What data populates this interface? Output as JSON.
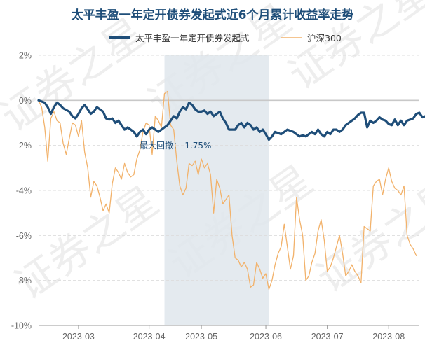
{
  "chart_data": {
    "type": "line",
    "title": "太平丰盈一年定开债券发起式近6个月累计收益率走势",
    "xlabel": "",
    "ylabel": "",
    "ylim": [
      -10,
      2
    ],
    "yticks": [
      2,
      0,
      -2,
      -4,
      -6,
      -8,
      -10
    ],
    "ytick_labels": [
      "2%",
      "0%",
      "-2%",
      "-4%",
      "-6%",
      "-8%",
      "-10%"
    ],
    "xtick_labels": [
      "2023-03",
      "2023-04",
      "2023-05",
      "2023-06",
      "2023-07",
      "2023-08"
    ],
    "x_index_range": [
      0,
      124
    ],
    "xtick_index": [
      13,
      36,
      53,
      74,
      94,
      114
    ],
    "grid": true,
    "legend_position": "top",
    "series": [
      {
        "name": "太平丰盈一年定开债券发起式",
        "color": "#1f4e79",
        "points": [
          [
            0,
            0.0
          ],
          [
            2,
            -0.1
          ],
          [
            3,
            -0.3
          ],
          [
            4,
            -0.6
          ],
          [
            5,
            -0.3
          ],
          [
            6,
            -0.1
          ],
          [
            7,
            -0.2
          ],
          [
            8,
            -0.35
          ],
          [
            10,
            -0.5
          ],
          [
            11,
            -0.7
          ],
          [
            12,
            -0.8
          ],
          [
            13,
            -0.6
          ],
          [
            14,
            -0.35
          ],
          [
            15,
            -0.2
          ],
          [
            16,
            -0.4
          ],
          [
            17,
            -0.6
          ],
          [
            18,
            -0.5
          ],
          [
            19,
            -0.3
          ],
          [
            20,
            -0.4
          ],
          [
            21,
            -0.5
          ],
          [
            22,
            -0.8
          ],
          [
            23,
            -0.85
          ],
          [
            24,
            -0.8
          ],
          [
            25,
            -1.0
          ],
          [
            26,
            -0.9
          ],
          [
            27,
            -1.1
          ],
          [
            28,
            -1.3
          ],
          [
            29,
            -1.2
          ],
          [
            30,
            -1.3
          ],
          [
            31,
            -1.4
          ],
          [
            32,
            -1.6
          ],
          [
            33,
            -1.4
          ],
          [
            34,
            -1.3
          ],
          [
            35,
            -1.5
          ],
          [
            36,
            -1.3
          ],
          [
            37,
            -1.2
          ],
          [
            38,
            -1.3
          ],
          [
            39,
            -1.4
          ],
          [
            40,
            -1.3
          ],
          [
            41,
            -1.2
          ],
          [
            42,
            -1.1
          ],
          [
            43,
            -0.9
          ],
          [
            44,
            -0.7
          ],
          [
            45,
            -0.8
          ],
          [
            46,
            -0.5
          ],
          [
            47,
            -0.3
          ],
          [
            48,
            -0.4
          ],
          [
            49,
            -0.1
          ],
          [
            50,
            -0.2
          ],
          [
            51,
            -0.4
          ],
          [
            52,
            -0.5
          ],
          [
            53,
            -0.5
          ],
          [
            54,
            -0.45
          ],
          [
            55,
            -0.6
          ],
          [
            56,
            -0.5
          ],
          [
            57,
            -0.7
          ],
          [
            58,
            -0.6
          ],
          [
            59,
            -0.5
          ],
          [
            60,
            -0.8
          ],
          [
            61,
            -1.0
          ],
          [
            62,
            -1.3
          ],
          [
            63,
            -1.3
          ],
          [
            64,
            -1.3
          ],
          [
            65,
            -1.1
          ],
          [
            66,
            -1.0
          ],
          [
            67,
            -1.2
          ],
          [
            68,
            -1.0
          ],
          [
            69,
            -1.1
          ],
          [
            70,
            -1.3
          ],
          [
            71,
            -1.2
          ],
          [
            72,
            -1.4
          ],
          [
            73,
            -1.3
          ],
          [
            74,
            -1.5
          ],
          [
            75,
            -1.75
          ],
          [
            76,
            -1.6
          ],
          [
            77,
            -1.4
          ],
          [
            78,
            -1.45
          ],
          [
            79,
            -1.5
          ],
          [
            80,
            -1.4
          ],
          [
            81,
            -1.3
          ],
          [
            82,
            -1.35
          ],
          [
            83,
            -1.4
          ],
          [
            84,
            -1.5
          ],
          [
            85,
            -1.6
          ],
          [
            86,
            -1.55
          ],
          [
            87,
            -1.6
          ],
          [
            88,
            -1.5
          ],
          [
            89,
            -1.4
          ],
          [
            90,
            -1.5
          ],
          [
            91,
            -1.3
          ],
          [
            92,
            -1.5
          ],
          [
            93,
            -1.6
          ],
          [
            94,
            -1.4
          ],
          [
            95,
            -1.5
          ],
          [
            96,
            -1.3
          ],
          [
            97,
            -1.3
          ],
          [
            98,
            -1.4
          ],
          [
            99,
            -1.3
          ],
          [
            100,
            -1.1
          ],
          [
            101,
            -1.0
          ],
          [
            102,
            -0.9
          ],
          [
            103,
            -0.8
          ],
          [
            104,
            -0.65
          ],
          [
            105,
            -0.55
          ],
          [
            106,
            -0.55
          ],
          [
            107,
            -1.2
          ],
          [
            108,
            -0.9
          ],
          [
            109,
            -1.0
          ],
          [
            110,
            -0.9
          ],
          [
            111,
            -0.75
          ],
          [
            112,
            -0.85
          ],
          [
            113,
            -0.9
          ],
          [
            114,
            -1.05
          ],
          [
            115,
            -1.1
          ],
          [
            116,
            -0.85
          ],
          [
            117,
            -1.1
          ],
          [
            118,
            -0.9
          ],
          [
            119,
            -1.1
          ],
          [
            120,
            -0.9
          ],
          [
            121,
            -0.85
          ],
          [
            122,
            -0.8
          ],
          [
            123,
            -0.6
          ],
          [
            124,
            -0.55
          ],
          [
            125,
            -0.75
          ],
          [
            126,
            -0.7
          ],
          [
            127,
            -0.45
          ],
          [
            128,
            -0.6
          ],
          [
            129,
            -0.4
          ],
          [
            130,
            -0.25
          ],
          [
            131,
            -0.45
          ],
          [
            132,
            -0.5
          ],
          [
            133,
            -0.55
          ],
          [
            134,
            -0.5
          ],
          [
            135,
            -0.8
          ],
          [
            136,
            -0.75
          ]
        ]
      },
      {
        "name": "沪深300",
        "color": "#f2b26b",
        "points": [
          [
            0,
            0.0
          ],
          [
            1,
            -0.3
          ],
          [
            2,
            -1.2
          ],
          [
            3,
            -2.7
          ],
          [
            4,
            -0.8
          ],
          [
            5,
            -0.5
          ],
          [
            6,
            -0.9
          ],
          [
            7,
            -1.0
          ],
          [
            8,
            -1.9
          ],
          [
            9,
            -2.4
          ],
          [
            10,
            -1.7
          ],
          [
            11,
            -1.0
          ],
          [
            12,
            -1.1
          ],
          [
            13,
            -1.6
          ],
          [
            14,
            -0.9
          ],
          [
            15,
            -2.3
          ],
          [
            16,
            -3.0
          ],
          [
            17,
            -4.3
          ],
          [
            18,
            -3.6
          ],
          [
            19,
            -3.8
          ],
          [
            20,
            -4.3
          ],
          [
            21,
            -4.9
          ],
          [
            22,
            -4.6
          ],
          [
            23,
            -5.0
          ],
          [
            24,
            -3.7
          ],
          [
            25,
            -3.0
          ],
          [
            26,
            -3.2
          ],
          [
            27,
            -3.5
          ],
          [
            28,
            -2.8
          ],
          [
            29,
            -3.2
          ],
          [
            30,
            -3.4
          ],
          [
            31,
            -3.3
          ],
          [
            32,
            -2.6
          ],
          [
            33,
            -2.2
          ],
          [
            34,
            -1.4
          ],
          [
            35,
            -1.0
          ],
          [
            36,
            -1.1
          ],
          [
            37,
            -2.4
          ],
          [
            38,
            -0.7
          ],
          [
            39,
            -0.9
          ],
          [
            40,
            -1.2
          ],
          [
            41,
            0.3
          ],
          [
            42,
            0.4
          ],
          [
            43,
            -1.1
          ],
          [
            44,
            -1.3
          ],
          [
            45,
            -2.7
          ],
          [
            46,
            -3.8
          ],
          [
            47,
            -4.2
          ],
          [
            48,
            -3.9
          ],
          [
            49,
            -2.8
          ],
          [
            50,
            -2.9
          ],
          [
            51,
            -2.7
          ],
          [
            52,
            -3.3
          ],
          [
            53,
            -2.6
          ],
          [
            54,
            -3.0
          ],
          [
            55,
            -2.8
          ],
          [
            56,
            -3.3
          ],
          [
            57,
            -5.0
          ],
          [
            58,
            -3.5
          ],
          [
            59,
            -3.9
          ],
          [
            60,
            -4.6
          ],
          [
            61,
            -4.4
          ],
          [
            62,
            -4.2
          ],
          [
            63,
            -6.0
          ],
          [
            64,
            -7.0
          ],
          [
            65,
            -7.1
          ],
          [
            66,
            -7.4
          ],
          [
            67,
            -7.2
          ],
          [
            68,
            -7.5
          ],
          [
            69,
            -8.3
          ],
          [
            70,
            -8.2
          ],
          [
            71,
            -7.2
          ],
          [
            72,
            -7.5
          ],
          [
            73,
            -7.9
          ],
          [
            74,
            -7.7
          ],
          [
            75,
            -8.4
          ],
          [
            76,
            -8.0
          ],
          [
            77,
            -7.3
          ],
          [
            78,
            -6.8
          ],
          [
            79,
            -6.5
          ],
          [
            80,
            -5.5
          ],
          [
            81,
            -6.5
          ],
          [
            82,
            -7.5
          ],
          [
            83,
            -6.9
          ],
          [
            84,
            -4.3
          ],
          [
            85,
            -5.3
          ],
          [
            86,
            -6.0
          ],
          [
            87,
            -8.0
          ],
          [
            88,
            -7.8
          ],
          [
            89,
            -7.2
          ],
          [
            90,
            -6.8
          ],
          [
            91,
            -5.8
          ],
          [
            92,
            -5.3
          ],
          [
            93,
            -6.2
          ],
          [
            94,
            -7.6
          ],
          [
            95,
            -7.4
          ],
          [
            96,
            -7.0
          ],
          [
            97,
            -6.5
          ],
          [
            98,
            -6.0
          ],
          [
            99,
            -6.8
          ],
          [
            100,
            -7.8
          ],
          [
            101,
            -7.6
          ],
          [
            102,
            -7.3
          ],
          [
            103,
            -7.6
          ],
          [
            104,
            -7.8
          ],
          [
            105,
            -8.1
          ],
          [
            106,
            -5.6
          ],
          [
            107,
            -5.7
          ],
          [
            108,
            -5.8
          ],
          [
            109,
            -3.8
          ],
          [
            110,
            -3.6
          ],
          [
            111,
            -3.5
          ],
          [
            112,
            -4.2
          ],
          [
            113,
            -3.5
          ],
          [
            114,
            -3.0
          ],
          [
            115,
            -3.6
          ],
          [
            116,
            -3.9
          ],
          [
            117,
            -4.0
          ],
          [
            118,
            -4.2
          ],
          [
            119,
            -3.8
          ],
          [
            120,
            -6.0
          ],
          [
            121,
            -6.4
          ],
          [
            122,
            -6.6
          ],
          [
            123,
            -6.9
          ]
        ]
      }
    ],
    "shaded_region": {
      "from_index": 41,
      "to_index": 75
    },
    "annotation": "最大回撤：-1.75%",
    "watermark": "证券之星"
  }
}
